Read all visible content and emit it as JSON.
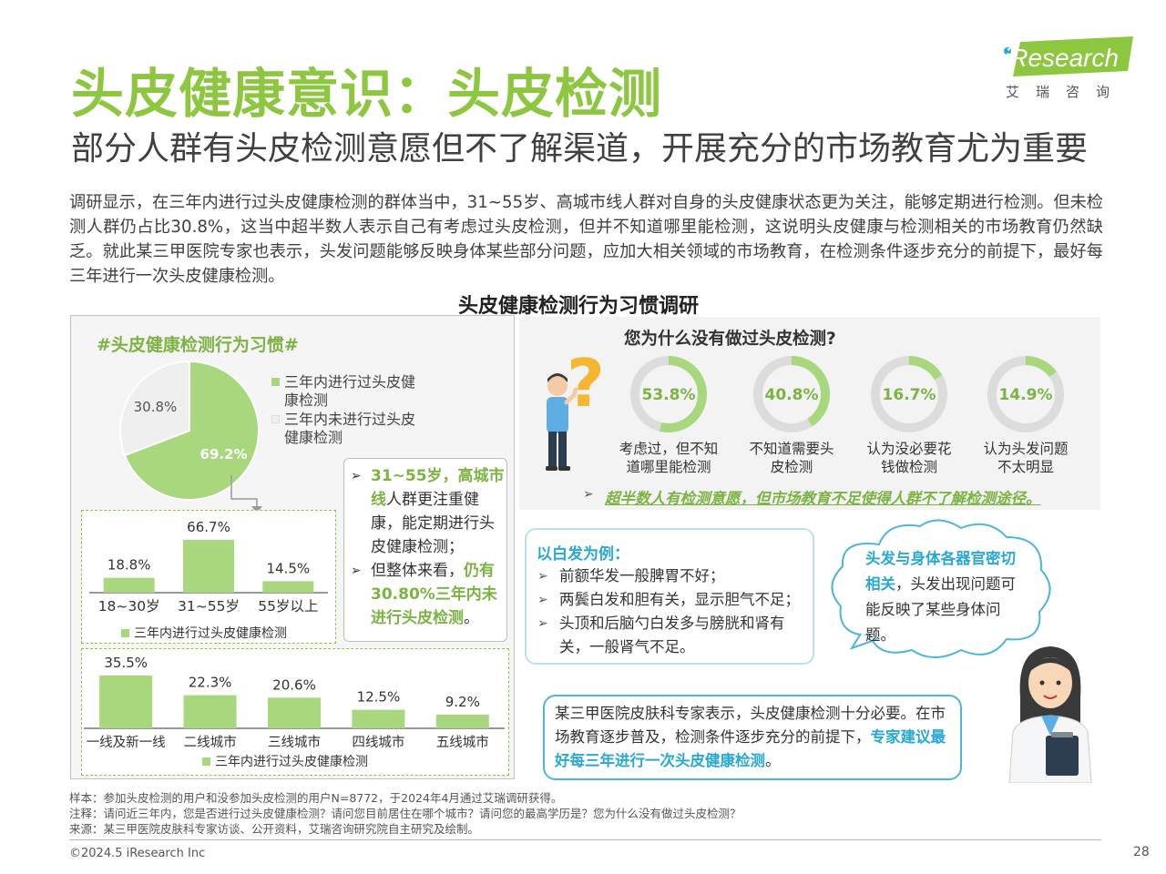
{
  "header": {
    "title": "头皮健康意识：头皮检测",
    "subtitle": "部分人群有头皮检测意愿但不了解渠道，开展充分的市场教育尤为重要",
    "logo_text": "iResearch",
    "logo_cn": "艾瑞咨询"
  },
  "intro": "调研显示，在三年内进行过头皮健康检测的群体当中，31~55岁、高城市线人群对自身的头皮健康状态更为关注，能够定期进行检测。但未检测人群仍占比30.8%，这当中超半数人表示自己有考虑过头皮检测，但并不知道哪里能检测，这说明头皮健康与检测相关的市场教育仍然缺乏。就此某三甲医院专家也表示，头发问题能够反映身体某些部分问题，应加大相关领域的市场教育，在检测条件逐步充分的前提下，最好每三年进行一次头皮健康检测。",
  "center_title": "头皮健康检测行为习惯调研",
  "left_panel": {
    "title": "#头皮健康检测行为习惯#",
    "note": {
      "hl1": "31~55岁，高城市线",
      "t1": "人群更注重健康，能定期进行头皮健康检测；",
      "t2": "但整体来看，",
      "hl2": "仍有30.80%三年内未进行头皮检测",
      "t3": "。"
    }
  },
  "right_panel": {
    "question": "您为什么没有做过头皮检测?",
    "conclusion": "超半数人有检测意愿，但市场教育不足使得人群不了解检测途径。",
    "white_box": {
      "title": "以白发为例：",
      "items": [
        "前额华发一般脾胃不好；",
        "两鬓白发和胆有关，显示胆气不足；",
        "头顶和后脑勺白发多与膀胱和肾有关，一般肾气不足。"
      ]
    },
    "cloud": {
      "hl": "头发与身体各器官密切相关",
      "text": "，头发出现问题可能反映了某些身体问题。"
    },
    "expert": {
      "t1": "某三甲医院皮肤科专家表示，头皮健康检测十分必要。在市场教育逐步普及，检测条件逐步充分的前提下，",
      "hl": "专家建议最好每三年进行一次头皮健康检测",
      "t2": "。"
    }
  },
  "chart_data": [
    {
      "type": "pie",
      "labels": [
        "三年内进行过头皮健康检测",
        "三年内未进行过头皮健康检测"
      ],
      "values": [
        69.2,
        30.8
      ],
      "value_labels": [
        "69.2%",
        "30.8%"
      ],
      "colors": [
        "#a9d77e",
        "#efefef"
      ],
      "legend": "right"
    },
    {
      "type": "bar",
      "categories": [
        "18~30岁",
        "31~55岁",
        "55岁以上"
      ],
      "series": [
        {
          "name": "三年内进行过头皮健康检测",
          "values": [
            18.8,
            66.7,
            14.5
          ]
        }
      ],
      "value_labels": [
        "18.8%",
        "66.7%",
        "14.5%"
      ],
      "color": "#a9d77e",
      "legend": "bottom"
    },
    {
      "type": "bar",
      "categories": [
        "一线及新一线",
        "二线城市",
        "三线城市",
        "四线城市",
        "五线城市"
      ],
      "series": [
        {
          "name": "三年内进行过头皮健康检测",
          "values": [
            35.5,
            22.3,
            20.6,
            12.5,
            9.2
          ]
        }
      ],
      "value_labels": [
        "35.5%",
        "22.3%",
        "20.6%",
        "12.5%",
        "9.2%"
      ],
      "color": "#a9d77e",
      "legend": "bottom"
    },
    {
      "type": "pie",
      "subtype": "donut",
      "title": "您为什么没有做过头皮检测?",
      "categories": [
        "考虑过，但不知道哪里能检测",
        "不知道需要头皮检测",
        "认为没必要花钱做检测",
        "认为头发问题不太明显"
      ],
      "values": [
        53.8,
        40.8,
        16.7,
        14.9
      ],
      "value_labels": [
        "53.8%",
        "40.8%",
        "16.7%",
        "14.9%"
      ],
      "colors": [
        "#a9d77e",
        "#dcdcdc"
      ]
    }
  ],
  "labels": {
    "donut_label_lines": [
      [
        "考虑过，但不知",
        "道哪里能检测"
      ],
      [
        "不知道需要头",
        "皮检测"
      ],
      [
        "认为没必要花",
        "钱做检测"
      ],
      [
        "认为头发问题",
        "不太明显"
      ]
    ],
    "pie_legend_lines": [
      [
        "三年内进行过头皮健",
        "康检测"
      ],
      [
        "三年内未进行过头皮",
        "健康检测"
      ]
    ]
  },
  "footer": {
    "sample": "样本：参加头皮检测的用户和没参加头皮检测的用户N=8772，于2024年4月通过艾瑞调研获得。",
    "note": "注释：请问近三年内，您是否进行过头皮健康检测？请问您目前居住在哪个城市？请问您的最高学历是？您为什么没有做过头皮检测？",
    "source": "来源：某三甲医院皮肤科专家访谈、公开资料，艾瑞咨询研究院自主研究及绘制。",
    "copyright": "©2024.5 iResearch Inc",
    "page": "28"
  }
}
